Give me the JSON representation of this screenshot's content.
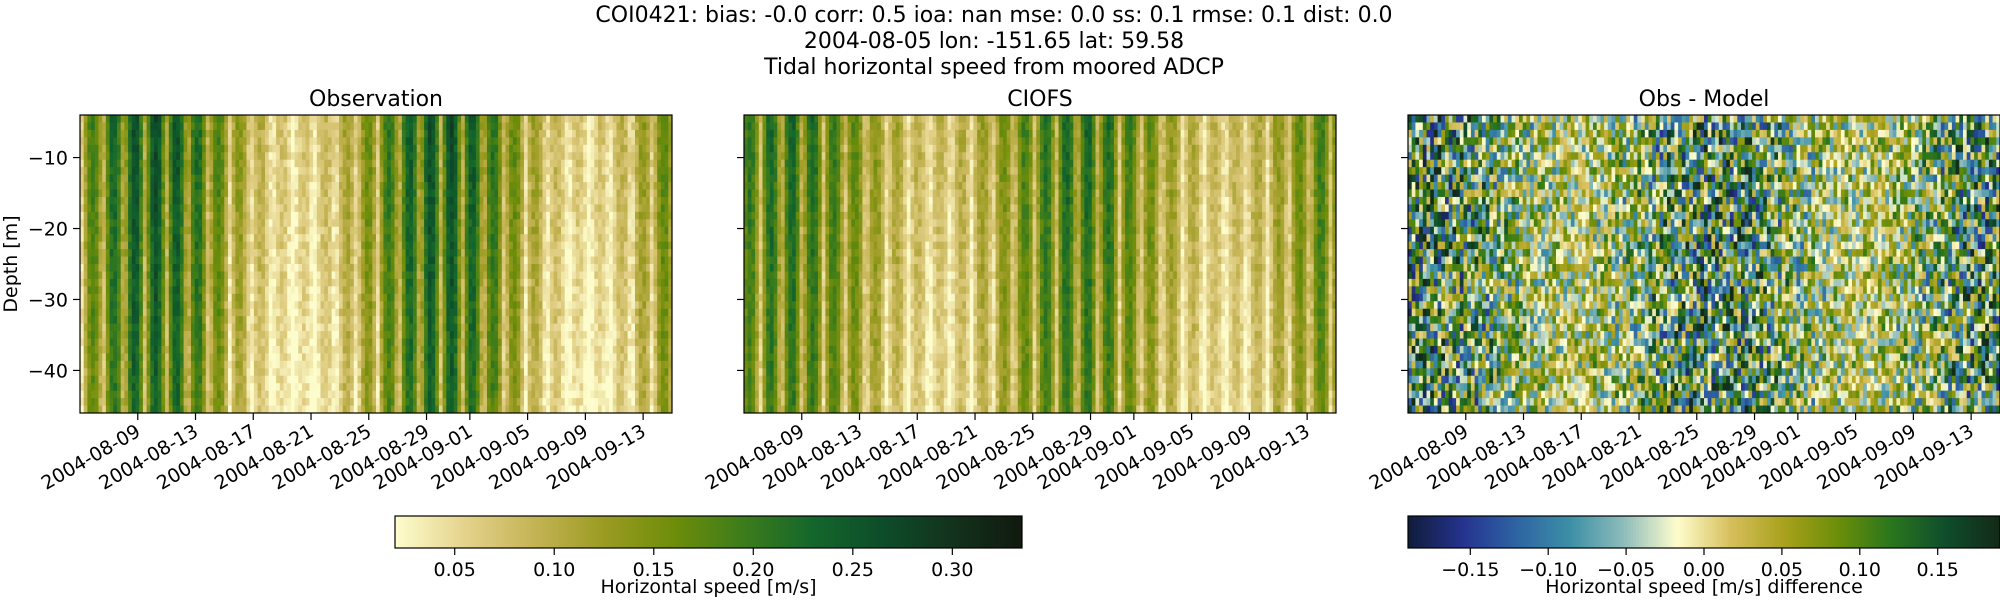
{
  "figure": {
    "title_lines": [
      "COI0421: bias: -0.0  corr: 0.5  ioa: nan  mse: 0.0  ss: 0.1  rmse: 0.1  dist: 0.0",
      "2004-08-05 lon: -151.65 lat: 59.58",
      "Tidal horizontal speed from moored ADCP"
    ]
  },
  "chart_data": [
    {
      "type": "heatmap",
      "title": "Observation",
      "xlabel": "",
      "ylabel": "Depth [m]",
      "x_tick_labels": [
        "2004-08-09",
        "2004-08-13",
        "2004-08-17",
        "2004-08-21",
        "2004-08-25",
        "2004-08-29",
        "2004-09-01",
        "2004-09-05",
        "2004-09-09",
        "2004-09-13"
      ],
      "xlim": [
        "2004-08-05",
        "2004-09-15"
      ],
      "y_ticks": [
        -10,
        -20,
        -30,
        -40
      ],
      "y_tick_labels": [
        "−10",
        "−20",
        "−30",
        "−40"
      ],
      "ylim": [
        -46,
        -4
      ],
      "colormap": "speed",
      "clim": [
        0.02,
        0.335
      ],
      "value_range_m_s": [
        0.02,
        0.33
      ]
    },
    {
      "type": "heatmap",
      "title": "CIOFS",
      "xlabel": "",
      "ylabel": "",
      "x_tick_labels": [
        "2004-08-09",
        "2004-08-13",
        "2004-08-17",
        "2004-08-21",
        "2004-08-25",
        "2004-08-29",
        "2004-09-01",
        "2004-09-05",
        "2004-09-09",
        "2004-09-13"
      ],
      "xlim": [
        "2004-08-05",
        "2004-09-15"
      ],
      "y_ticks": [
        -10,
        -20,
        -30,
        -40
      ],
      "ylim": [
        -46,
        -4
      ],
      "colormap": "speed",
      "clim": [
        0.02,
        0.335
      ]
    },
    {
      "type": "heatmap",
      "title": "Obs - Model",
      "xlabel": "",
      "ylabel": "",
      "x_tick_labels": [
        "2004-08-09",
        "2004-08-13",
        "2004-08-17",
        "2004-08-21",
        "2004-08-25",
        "2004-08-29",
        "2004-09-01",
        "2004-09-05",
        "2004-09-09",
        "2004-09-13"
      ],
      "xlim": [
        "2004-08-05",
        "2004-09-15"
      ],
      "y_ticks": [
        -10,
        -20,
        -30,
        -40
      ],
      "ylim": [
        -46,
        -4
      ],
      "colormap": "delta",
      "clim": [
        -0.19,
        0.19
      ]
    }
  ],
  "colorbars": [
    {
      "label": "Horizontal speed [m/s]",
      "range": [
        0.02,
        0.335
      ],
      "ticks": [
        0.05,
        0.1,
        0.15,
        0.2,
        0.25,
        0.3
      ],
      "tick_labels": [
        "0.05",
        "0.10",
        "0.15",
        "0.20",
        "0.25",
        "0.30"
      ],
      "colors": [
        "#fdfccc",
        "#e4d28b",
        "#c4b354",
        "#9a9b22",
        "#6e8d0a",
        "#3c7c1b",
        "#14672c",
        "#0d4d2a",
        "#13331d",
        "#111a0f"
      ]
    },
    {
      "label": "Horizontal speed [m/s] difference",
      "range": [
        -0.19,
        0.19
      ],
      "ticks": [
        -0.15,
        -0.1,
        -0.05,
        0.0,
        0.05,
        0.1,
        0.15
      ],
      "tick_labels": [
        "−0.15",
        "−0.10",
        "−0.05",
        "0.00",
        "0.05",
        "0.10",
        "0.15"
      ],
      "colors": [
        "#111d3c",
        "#25338f",
        "#2e64a3",
        "#3c8fa6",
        "#8ebcbb",
        "#fffdcd",
        "#d6bf5c",
        "#a8a11c",
        "#6b8e09",
        "#2a761d",
        "#0f4e2d",
        "#132a19"
      ]
    }
  ]
}
